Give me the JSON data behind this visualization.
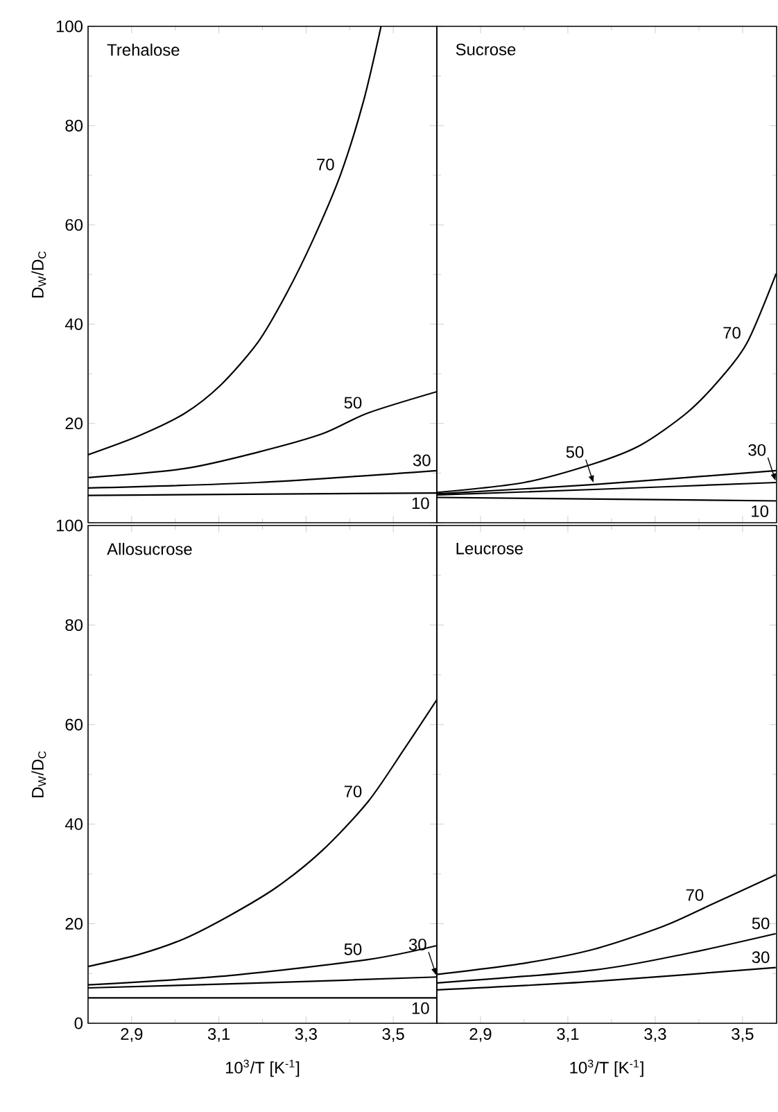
{
  "chart_data": [
    {
      "type": "line",
      "title": "Trehalose",
      "ylabel": "D$_{W}$/D$_{C}$",
      "xlim": [
        2.8,
        3.6
      ],
      "ylim": [
        0,
        100
      ],
      "tick_labels": "y",
      "xticks": [
        {
          "value": 2.9,
          "label": null
        },
        {
          "value": 3.1,
          "label": null
        },
        {
          "value": 3.3,
          "label": null
        },
        {
          "value": 3.5,
          "label": null
        }
      ],
      "yticks": [
        {
          "value": 0,
          "label": null
        },
        20,
        40,
        60,
        80,
        100
      ],
      "series": [
        {
          "color": "#000000",
          "x": [
            2.8,
            2.916,
            3.021,
            3.105,
            3.19,
            3.253,
            3.316,
            3.379,
            3.432,
            3.472
          ],
          "values": [
            13.7,
            17.5,
            22,
            27.8,
            36.4,
            45.8,
            57,
            70.1,
            85,
            100
          ]
        },
        {
          "color": "#000000",
          "x": [
            2.8,
            3.021,
            3.189,
            3.337,
            3.442,
            3.6
          ],
          "values": [
            9.1,
            10.9,
            14.2,
            17.9,
            22.1,
            26.4
          ]
        },
        {
          "color": "#000000",
          "x": [
            2.8,
            3.189,
            3.6
          ],
          "values": [
            7,
            8.1,
            10.5
          ]
        },
        {
          "color": "#000000",
          "x": [
            2.8,
            3.6
          ],
          "values": [
            5.5,
            6
          ]
        }
      ],
      "annotations": [
        {
          "text": "70",
          "x": 3.379,
          "y": 70.1
        },
        {
          "text": "50",
          "x": 3.442,
          "y": 22.1
        },
        {
          "text": "30",
          "x": 3.6,
          "y": 10.5
        },
        {
          "text": "10",
          "x": 3.6,
          "y": 6
        }
      ]
    },
    {
      "type": "line",
      "title": "Sucrose",
      "xlim": [
        2.8,
        3.578
      ],
      "ylim": [
        0,
        100
      ],
      "tick_labels": false,
      "xticks": [
        {
          "value": 2.9,
          "label": null
        },
        {
          "value": 3.1,
          "label": null
        },
        {
          "value": 3.3,
          "label": null
        },
        {
          "value": 3.5,
          "label": null
        }
      ],
      "yticks": [
        {
          "value": 0,
          "label": null
        },
        {
          "value": 20,
          "label": null
        },
        {
          "value": 40,
          "label": null
        },
        {
          "value": 60,
          "label": null
        },
        {
          "value": 80,
          "label": null
        },
        {
          "value": 100,
          "label": null
        }
      ],
      "series": [
        {
          "color": "#000000",
          "x": [
            2.8,
            3.0,
            3.16,
            3.266,
            3.372,
            3.446,
            3.51,
            3.577
          ],
          "values": [
            6.1,
            8.1,
            11.9,
            15.6,
            22.1,
            28.7,
            36.2,
            50.2
          ]
        },
        {
          "color": "#000000",
          "x": [
            2.8,
            3.16,
            3.577
          ],
          "values": [
            5.8,
            7.7,
            10.5
          ]
        },
        {
          "color": "#000000",
          "x": [
            2.8,
            3.16,
            3.577
          ],
          "values": [
            5.6,
            6.7,
            8.1
          ]
        },
        {
          "color": "#000000",
          "x": [
            2.8,
            3.577
          ],
          "values": [
            5.1,
            4.4
          ]
        }
      ],
      "annotations": [
        {
          "text": "70",
          "x": 3.51,
          "y": 36.2
        },
        {
          "text": "50",
          "x": 3.16,
          "y": 7.7
        },
        {
          "text": "30",
          "x": 3.577,
          "y": 8.1
        },
        {
          "text": "10",
          "x": 3.577,
          "y": 4.4
        }
      ]
    },
    {
      "type": "line",
      "title": "Allosucrose",
      "xlabel": "10$^{3}$/T [K$^{-1}$]",
      "ylabel": "D$_{W}$/D$_{C}$",
      "xlim": [
        2.8,
        3.6
      ],
      "ylim": [
        0,
        100
      ],
      "xticks": [
        {
          "value": 2.9,
          "label": "2,9"
        },
        {
          "value": 3.1,
          "label": "3,1"
        },
        {
          "value": 3.3,
          "label": "3,3"
        },
        {
          "value": 3.5,
          "label": "3,5"
        }
      ],
      "yticks": [
        0,
        20,
        40,
        60,
        80,
        100
      ],
      "series": [
        {
          "color": "#000000",
          "x": [
            2.8,
            2.916,
            3.021,
            3.126,
            3.232,
            3.337,
            3.442,
            3.526,
            3.6
          ],
          "values": [
            11.4,
            13.8,
            17,
            21.7,
            27.3,
            34.7,
            44.5,
            55.2,
            65
          ]
        },
        {
          "color": "#000000",
          "x": [
            2.8,
            3.126,
            3.442,
            3.6
          ],
          "values": [
            7.7,
            9.6,
            12.8,
            15.6
          ]
        },
        {
          "color": "#000000",
          "x": [
            2.8,
            3.232,
            3.6
          ],
          "values": [
            7.1,
            8.2,
            9.3
          ]
        },
        {
          "color": "#000000",
          "x": [
            2.8,
            3.6
          ],
          "values": [
            5.1,
            5.1
          ]
        }
      ],
      "annotations": [
        {
          "text": "70",
          "x": 3.442,
          "y": 44.5
        },
        {
          "text": "50",
          "x": 3.442,
          "y": 12.8
        },
        {
          "text": "30",
          "x": 3.6,
          "y": 9.3
        },
        {
          "text": "10",
          "x": 3.6,
          "y": 5.1
        }
      ]
    },
    {
      "type": "line",
      "title": "Leucrose",
      "xlabel": "10$^{3}$/T [K$^{-1}$]",
      "xlim": [
        2.8,
        3.578
      ],
      "ylim": [
        0,
        100
      ],
      "tick_labels": "x",
      "xticks": [
        {
          "value": 2.9,
          "label": "2,9"
        },
        {
          "value": 3.1,
          "label": "3,1"
        },
        {
          "value": 3.3,
          "label": "3,3"
        },
        {
          "value": 3.5,
          "label": "3,5"
        }
      ],
      "yticks": [
        {
          "value": 0,
          "label": null
        },
        {
          "value": 20,
          "label": null
        },
        {
          "value": 40,
          "label": null
        },
        {
          "value": 60,
          "label": null
        },
        {
          "value": 80,
          "label": null
        },
        {
          "value": 100,
          "label": null
        }
      ],
      "series": [
        {
          "color": "#000000",
          "x": [
            2.8,
            3.003,
            3.161,
            3.319,
            3.425,
            3.576
          ],
          "values": [
            9.8,
            12.1,
            14.9,
            19.5,
            23.7,
            29.8
          ]
        },
        {
          "color": "#000000",
          "x": [
            2.8,
            3.161,
            3.372,
            3.576
          ],
          "values": [
            8.1,
            10.7,
            14,
            18
          ]
        },
        {
          "color": "#000000",
          "x": [
            2.8,
            3.161,
            3.576
          ],
          "values": [
            6.7,
            8.4,
            11.2
          ]
        }
      ],
      "annotations": [
        {
          "text": "70",
          "x": 3.425,
          "y": 23.7
        },
        {
          "text": "50",
          "x": 3.576,
          "y": 18
        },
        {
          "text": "30",
          "x": 3.576,
          "y": 11.2
        }
      ]
    }
  ]
}
